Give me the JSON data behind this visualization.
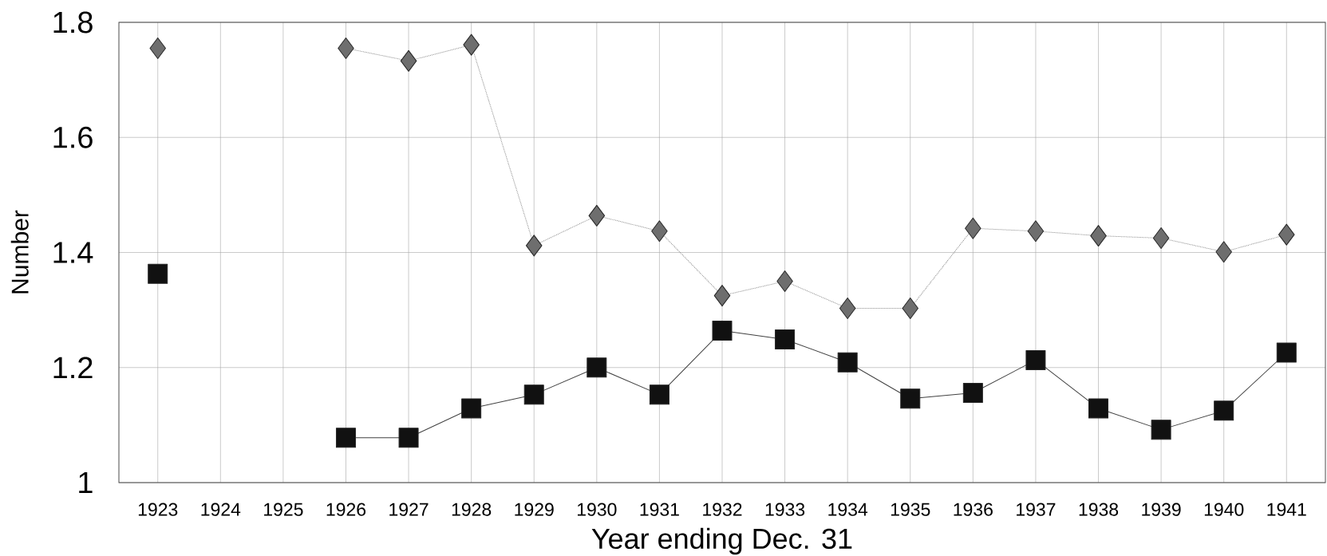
{
  "chart_data": {
    "type": "line",
    "xlabel": "Year ending Dec. 31",
    "ylabel": "Number",
    "categories": [
      "1923",
      "1924",
      "1925",
      "1926",
      "1927",
      "1928",
      "1929",
      "1930",
      "1931",
      "1932",
      "1933",
      "1934",
      "1935",
      "1936",
      "1937",
      "1938",
      "1939",
      "1940",
      "1941"
    ],
    "series": [
      {
        "color": "#6e6e6e",
        "marker": "diamond",
        "line_style": "dotted",
        "values": [
          1.755,
          null,
          null,
          1.755,
          1.733,
          1.761,
          1.412,
          1.464,
          1.437,
          1.325,
          1.35,
          1.303,
          1.303,
          1.442,
          1.437,
          1.429,
          1.425,
          1.401,
          1.431
        ]
      },
      {
        "color": "#111111",
        "marker": "square",
        "line_style": "solid",
        "values": [
          1.363,
          null,
          null,
          1.078,
          1.078,
          1.129,
          1.153,
          1.2,
          1.153,
          1.264,
          1.249,
          1.209,
          1.146,
          1.156,
          1.213,
          1.129,
          1.092,
          1.125,
          1.226
        ]
      }
    ],
    "ylim": [
      1,
      1.8
    ],
    "yticks": [
      1,
      1.2,
      1.4,
      1.6,
      1.8
    ],
    "grid": true
  }
}
